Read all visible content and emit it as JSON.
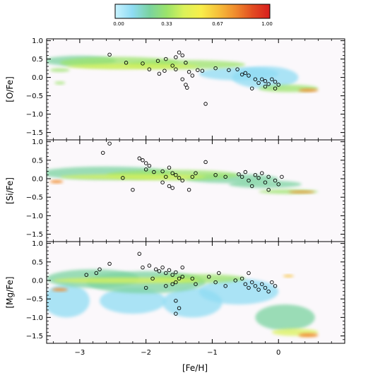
{
  "chart_data": {
    "type": "scatter",
    "description_free": true,
    "colorbar": {
      "ticks": [
        "0.00",
        "0.33",
        "0.67",
        "1.00"
      ],
      "colors": [
        "#c9f3ff",
        "#8fdcf3",
        "#7ad3a0",
        "#9be36a",
        "#dbf25a",
        "#f8ee4a",
        "#f6c03b",
        "#f08b2d",
        "#e24c22",
        "#d81e1e"
      ]
    },
    "xlabel": "[Fe/H]",
    "xlim": [
      -3.5,
      1.0
    ],
    "xticks": [
      "−3",
      "−2",
      "−1",
      "0"
    ],
    "xtick_values": [
      -3,
      -2,
      -1,
      0
    ],
    "panels": [
      {
        "ylabel": "[O/Fe]",
        "ylim": [
          -1.7,
          1.05
        ],
        "yticks": [
          "1.0",
          "0.5",
          "0.0",
          "−0.5",
          "−1.0",
          "−1.5"
        ],
        "ytick_values": [
          1.0,
          0.5,
          0.0,
          -0.5,
          -1.0,
          -1.5
        ],
        "density": [
          {
            "x": -3.0,
            "y": 0.45,
            "rx": 0.55,
            "ry": 0.14,
            "level": 0.2
          },
          {
            "x": -2.4,
            "y": 0.4,
            "rx": 0.9,
            "ry": 0.16,
            "level": 0.3
          },
          {
            "x": -1.4,
            "y": 0.35,
            "rx": 0.9,
            "ry": 0.12,
            "level": 0.35
          },
          {
            "x": -2.2,
            "y": 0.3,
            "rx": 1.0,
            "ry": 0.07,
            "level": 0.45
          },
          {
            "x": -0.6,
            "y": 0.1,
            "rx": 0.6,
            "ry": 0.18,
            "level": 0.15
          },
          {
            "x": -0.2,
            "y": 0.0,
            "rx": 0.5,
            "ry": 0.3,
            "level": 0.1
          },
          {
            "x": 0.15,
            "y": -0.3,
            "rx": 0.45,
            "ry": 0.1,
            "level": 0.3
          },
          {
            "x": 0.45,
            "y": -0.35,
            "rx": 0.15,
            "ry": 0.04,
            "level": 0.8
          },
          {
            "x": -3.3,
            "y": 0.2,
            "rx": 0.15,
            "ry": 0.05,
            "level": 0.35
          },
          {
            "x": -3.3,
            "y": -0.15,
            "rx": 0.08,
            "ry": 0.04,
            "level": 0.35
          }
        ],
        "points": [
          [
            -2.55,
            0.62
          ],
          [
            -2.3,
            0.4
          ],
          [
            -2.05,
            0.38
          ],
          [
            -1.82,
            0.45
          ],
          [
            -1.7,
            0.5
          ],
          [
            -1.55,
            0.55
          ],
          [
            -1.5,
            0.68
          ],
          [
            -1.45,
            0.6
          ],
          [
            -1.4,
            0.4
          ],
          [
            -1.6,
            0.32
          ],
          [
            -1.55,
            0.22
          ],
          [
            -1.72,
            0.18
          ],
          [
            -1.8,
            0.1
          ],
          [
            -1.95,
            0.22
          ],
          [
            -1.35,
            0.15
          ],
          [
            -1.3,
            0.05
          ],
          [
            -1.45,
            -0.05
          ],
          [
            -1.4,
            -0.2
          ],
          [
            -1.38,
            -0.28
          ],
          [
            -1.22,
            0.2
          ],
          [
            -1.15,
            0.18
          ],
          [
            -0.95,
            0.25
          ],
          [
            -0.75,
            0.2
          ],
          [
            -0.62,
            0.22
          ],
          [
            -0.55,
            0.08
          ],
          [
            -0.5,
            0.12
          ],
          [
            -0.45,
            0.05
          ],
          [
            -0.35,
            -0.05
          ],
          [
            -0.3,
            -0.15
          ],
          [
            -0.25,
            -0.05
          ],
          [
            -0.2,
            -0.1
          ],
          [
            -0.15,
            -0.18
          ],
          [
            -0.1,
            -0.05
          ],
          [
            -0.05,
            -0.12
          ],
          [
            0.0,
            -0.2
          ],
          [
            -0.4,
            -0.3
          ],
          [
            -0.2,
            -0.25
          ],
          [
            -0.05,
            -0.3
          ],
          [
            -1.1,
            -0.72
          ]
        ]
      },
      {
        "ylabel": "[Si/Fe]",
        "ylim": [
          -1.7,
          1.05
        ],
        "yticks": [
          "1.0",
          "0.5",
          "0.0",
          "−0.5",
          "−1.0",
          "−1.5"
        ],
        "ytick_values": [
          1.0,
          0.5,
          0.0,
          -0.5,
          -1.0,
          -1.5
        ],
        "density": [
          {
            "x": -2.6,
            "y": 0.15,
            "rx": 1.0,
            "ry": 0.18,
            "level": 0.2
          },
          {
            "x": -1.6,
            "y": 0.1,
            "rx": 1.0,
            "ry": 0.14,
            "level": 0.3
          },
          {
            "x": -2.2,
            "y": 0.05,
            "rx": 1.1,
            "ry": 0.07,
            "level": 0.4
          },
          {
            "x": -0.7,
            "y": 0.0,
            "rx": 0.7,
            "ry": 0.12,
            "level": 0.2
          },
          {
            "x": -0.2,
            "y": -0.15,
            "rx": 0.55,
            "ry": 0.1,
            "level": 0.2
          },
          {
            "x": 0.15,
            "y": -0.35,
            "rx": 0.45,
            "ry": 0.06,
            "level": 0.35
          },
          {
            "x": 0.35,
            "y": -0.36,
            "rx": 0.2,
            "ry": 0.03,
            "level": 0.8
          },
          {
            "x": -3.35,
            "y": -0.08,
            "rx": 0.1,
            "ry": 0.04,
            "level": 0.8
          }
        ],
        "points": [
          [
            -2.55,
            0.95
          ],
          [
            -2.65,
            0.7
          ],
          [
            -2.1,
            0.55
          ],
          [
            -2.05,
            0.5
          ],
          [
            -2.0,
            0.42
          ],
          [
            -1.95,
            0.35
          ],
          [
            -2.0,
            0.25
          ],
          [
            -1.88,
            0.18
          ],
          [
            -1.75,
            0.2
          ],
          [
            -1.65,
            0.3
          ],
          [
            -1.6,
            0.15
          ],
          [
            -1.55,
            0.1
          ],
          [
            -1.7,
            0.05
          ],
          [
            -1.75,
            -0.1
          ],
          [
            -1.65,
            -0.2
          ],
          [
            -1.6,
            -0.25
          ],
          [
            -1.5,
            0.02
          ],
          [
            -1.45,
            -0.05
          ],
          [
            -1.3,
            0.05
          ],
          [
            -1.25,
            0.15
          ],
          [
            -1.35,
            -0.3
          ],
          [
            -1.1,
            0.45
          ],
          [
            -0.95,
            0.1
          ],
          [
            -0.8,
            0.05
          ],
          [
            -0.6,
            0.12
          ],
          [
            -0.55,
            0.05
          ],
          [
            -0.5,
            0.18
          ],
          [
            -0.45,
            -0.05
          ],
          [
            -0.35,
            0.1
          ],
          [
            -0.3,
            0.02
          ],
          [
            -0.25,
            0.15
          ],
          [
            -0.2,
            -0.1
          ],
          [
            -0.15,
            0.05
          ],
          [
            -0.05,
            -0.05
          ],
          [
            0.0,
            -0.15
          ],
          [
            0.05,
            0.05
          ],
          [
            -2.2,
            -0.3
          ],
          [
            -2.35,
            0.02
          ],
          [
            -0.4,
            -0.2
          ],
          [
            -0.15,
            -0.3
          ]
        ]
      },
      {
        "ylabel": "[Mg/Fe]",
        "ylim": [
          -1.7,
          1.05
        ],
        "yticks": [
          "1.0",
          "0.5",
          "0.0",
          "−0.5",
          "−1.0",
          "−1.5"
        ],
        "ytick_values": [
          1.0,
          0.5,
          0.0,
          -0.5,
          -1.0,
          -1.5
        ],
        "density": [
          {
            "x": -2.8,
            "y": 0.05,
            "rx": 0.7,
            "ry": 0.25,
            "level": 0.25
          },
          {
            "x": -2.0,
            "y": -0.05,
            "rx": 0.9,
            "ry": 0.3,
            "level": 0.25
          },
          {
            "x": -2.3,
            "y": 0.0,
            "rx": 1.1,
            "ry": 0.08,
            "level": 0.45
          },
          {
            "x": -1.2,
            "y": 0.05,
            "rx": 0.7,
            "ry": 0.12,
            "level": 0.35
          },
          {
            "x": -3.2,
            "y": -0.55,
            "rx": 0.35,
            "ry": 0.45,
            "level": 0.15
          },
          {
            "x": -2.2,
            "y": -0.55,
            "rx": 0.5,
            "ry": 0.35,
            "level": 0.15
          },
          {
            "x": -1.3,
            "y": -0.6,
            "rx": 0.45,
            "ry": 0.4,
            "level": 0.12
          },
          {
            "x": -0.6,
            "y": -0.3,
            "rx": 0.6,
            "ry": 0.35,
            "level": 0.12
          },
          {
            "x": 0.1,
            "y": -1.0,
            "rx": 0.45,
            "ry": 0.35,
            "level": 0.2
          },
          {
            "x": 0.25,
            "y": -1.4,
            "rx": 0.35,
            "ry": 0.1,
            "level": 0.4
          },
          {
            "x": 0.45,
            "y": -1.48,
            "rx": 0.15,
            "ry": 0.05,
            "level": 0.8
          },
          {
            "x": -3.3,
            "y": -0.25,
            "rx": 0.12,
            "ry": 0.04,
            "level": 0.75
          },
          {
            "x": 0.15,
            "y": 0.12,
            "rx": 0.08,
            "ry": 0.03,
            "level": 0.7
          }
        ],
        "points": [
          [
            -2.55,
            0.45
          ],
          [
            -2.7,
            0.3
          ],
          [
            -2.75,
            0.2
          ],
          [
            -2.1,
            0.72
          ],
          [
            -2.05,
            0.35
          ],
          [
            -1.95,
            0.4
          ],
          [
            -1.85,
            0.3
          ],
          [
            -1.8,
            0.25
          ],
          [
            -1.75,
            0.35
          ],
          [
            -1.7,
            0.2
          ],
          [
            -1.65,
            0.28
          ],
          [
            -1.6,
            0.15
          ],
          [
            -1.55,
            0.22
          ],
          [
            -1.45,
            0.35
          ],
          [
            -1.45,
            0.1
          ],
          [
            -1.5,
            0.05
          ],
          [
            -1.55,
            -0.05
          ],
          [
            -1.6,
            -0.1
          ],
          [
            -1.7,
            -0.15
          ],
          [
            -1.9,
            0.05
          ],
          [
            -2.0,
            -0.2
          ],
          [
            -1.3,
            0.05
          ],
          [
            -1.25,
            -0.1
          ],
          [
            -1.05,
            0.1
          ],
          [
            -0.95,
            -0.05
          ],
          [
            -0.9,
            0.2
          ],
          [
            -0.8,
            -0.15
          ],
          [
            -0.65,
            0.0
          ],
          [
            -0.55,
            0.05
          ],
          [
            -0.5,
            -0.1
          ],
          [
            -0.45,
            -0.2
          ],
          [
            -0.4,
            -0.05
          ],
          [
            -0.35,
            -0.15
          ],
          [
            -0.3,
            -0.25
          ],
          [
            -0.25,
            -0.1
          ],
          [
            -0.2,
            -0.2
          ],
          [
            -0.15,
            -0.3
          ],
          [
            -0.1,
            -0.05
          ],
          [
            -0.05,
            -0.15
          ],
          [
            -0.45,
            0.2
          ],
          [
            -1.55,
            -0.55
          ],
          [
            -1.5,
            -0.75
          ],
          [
            -1.55,
            -0.9
          ],
          [
            -2.9,
            0.15
          ]
        ]
      }
    ]
  }
}
